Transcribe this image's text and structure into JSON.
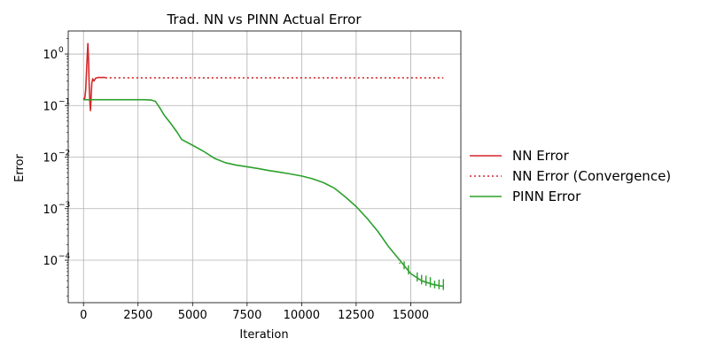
{
  "chart_data": {
    "type": "line",
    "title": "Trad. NN vs PINN Actual Error",
    "xlabel": "Iteration",
    "ylabel": "Error",
    "xlim": [
      -700,
      17300
    ],
    "ylim": [
      1.5e-05,
      2.8
    ],
    "yscale": "log",
    "grid": true,
    "legend_position": "right-outside",
    "x_ticks": [
      0,
      2500,
      5000,
      7500,
      10000,
      12500,
      15000
    ],
    "x_tick_labels": [
      "0",
      "2500",
      "5000",
      "7500",
      "10000",
      "12500",
      "15000"
    ],
    "y_ticks": [
      0.0001,
      0.001,
      0.01,
      0.1,
      1
    ],
    "y_tick_labels": [
      "10",
      "10",
      "10",
      "10",
      "10"
    ],
    "y_tick_exponents": [
      "−4",
      "−3",
      "−2",
      "−1",
      "0"
    ],
    "series": [
      {
        "name": "NN Error",
        "color": "#d62728",
        "style": "solid",
        "x": [
          0,
          50,
          100,
          150,
          200,
          230,
          260,
          290,
          320,
          350,
          380,
          420,
          480,
          560,
          650,
          750,
          850,
          1000
        ],
        "y": [
          0.14,
          0.13,
          0.2,
          0.6,
          1.6,
          0.8,
          0.25,
          0.12,
          0.08,
          0.15,
          0.27,
          0.33,
          0.3,
          0.34,
          0.35,
          0.35,
          0.35,
          0.35
        ]
      },
      {
        "name": "NN Error (Convergence)",
        "color": "#d62728",
        "style": "dotted",
        "x": [
          1000,
          16500
        ],
        "y": [
          0.345,
          0.345
        ]
      },
      {
        "name": "PINN Error",
        "color": "#2ca02c",
        "style": "solid",
        "x": [
          0,
          500,
          1000,
          2000,
          2800,
          3100,
          3300,
          3500,
          3700,
          4000,
          4300,
          4500,
          5000,
          5500,
          6000,
          6500,
          7000,
          7500,
          8000,
          8500,
          9000,
          9500,
          10000,
          10500,
          11000,
          11500,
          12000,
          12500,
          13000,
          13500,
          14000,
          14500,
          15000,
          15500,
          16000,
          16500
        ],
        "y": [
          0.13,
          0.13,
          0.13,
          0.13,
          0.13,
          0.128,
          0.12,
          0.09,
          0.065,
          0.045,
          0.03,
          0.022,
          0.017,
          0.013,
          0.0095,
          0.0078,
          0.007,
          0.0065,
          0.006,
          0.0055,
          0.0051,
          0.0047,
          0.0043,
          0.0038,
          0.0032,
          0.0025,
          0.0017,
          0.0011,
          0.00065,
          0.00036,
          0.00018,
          0.0001,
          5.5e-05,
          4e-05,
          3.4e-05,
          3.1e-05
        ]
      }
    ],
    "pinn_spikes": {
      "x": [
        14500,
        14700,
        14900,
        15300,
        15500,
        15700,
        15900,
        16100,
        16300,
        16500
      ],
      "y": [
        9e-05,
        9.5e-05,
        8e-05,
        5.8e-05,
        5.2e-05,
        5e-05,
        4.7e-05,
        4e-05,
        4.2e-05,
        4.3e-05
      ]
    }
  }
}
